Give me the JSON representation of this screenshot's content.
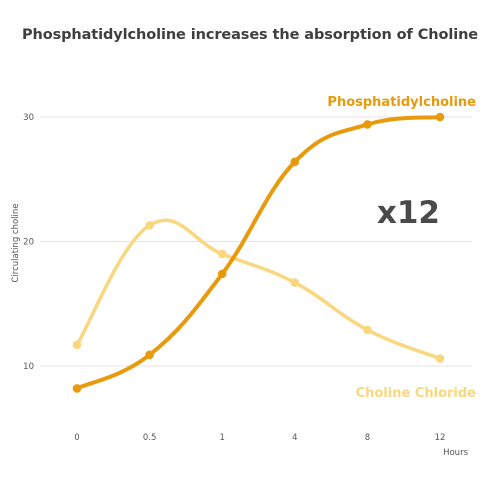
{
  "chart_data": {
    "type": "line",
    "title": "Phosphatidylcholine increases the absorption of Choline",
    "ylabel": "Circulating choline",
    "xlabel": "Hours",
    "categories": [
      "0",
      "0.5",
      "1",
      "4",
      "8",
      "12"
    ],
    "y_ticks": [
      10,
      20,
      30
    ],
    "ylim": [
      0,
      32
    ],
    "grid": "horizontal",
    "series": [
      {
        "name": "Phosphatidylcholine",
        "color": "#e89a0c",
        "values": [
          8.2,
          10.9,
          17.4,
          26.4,
          29.4,
          30.0
        ]
      },
      {
        "name": "Choline Chloride",
        "color": "#f9d77e",
        "values": [
          11.7,
          21.3,
          19.0,
          16.7,
          12.9,
          10.6
        ]
      }
    ],
    "annotation": "x12"
  }
}
